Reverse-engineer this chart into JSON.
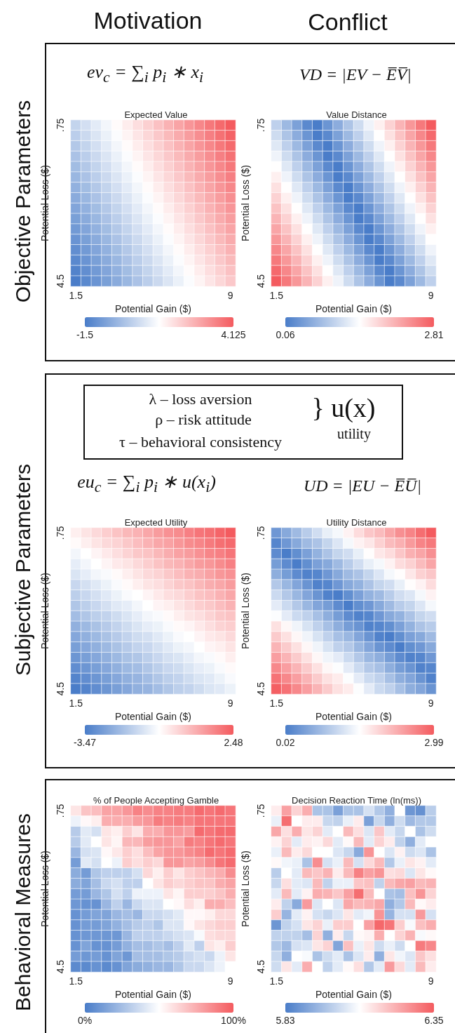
{
  "chart_data": [
    {
      "type": "heatmap",
      "title": "Expected Value",
      "xlabel": "Potential Gain ($)",
      "ylabel": "Potential Loss ($)",
      "annotations": [
        "Motivation",
        "Objective Parameters",
        "ev$_{c}$ = ∑$_{i}$ p$_{i}$ ∗ x$_{i}$"
      ],
      "categories": [
        "1.5",
        null,
        null,
        null,
        null,
        null,
        null,
        null,
        null,
        null,
        null,
        null,
        null,
        null,
        null,
        "9"
      ],
      "y_categories": [
        ".75",
        null,
        null,
        null,
        null,
        null,
        null,
        null,
        null,
        null,
        null,
        null,
        null,
        null,
        null,
        "4.5"
      ],
      "clim": [
        -1.5,
        4.125
      ],
      "cticks": [
        -1.5,
        4.125
      ],
      "cells": [
        [
          0.375,
          0.625,
          0.875,
          1.125,
          1.375,
          1.625,
          1.875,
          2.125,
          2.375,
          2.625,
          2.875,
          3.125,
          3.375,
          3.625,
          3.875,
          4.125
        ],
        [
          0.25,
          0.5,
          0.75,
          1,
          1.25,
          1.5,
          1.75,
          2,
          2.25,
          2.5,
          2.75,
          3,
          3.25,
          3.5,
          3.75,
          4
        ],
        [
          0.125,
          0.375,
          0.625,
          0.875,
          1.125,
          1.375,
          1.625,
          1.875,
          2.125,
          2.375,
          2.625,
          2.875,
          3.125,
          3.375,
          3.625,
          3.875
        ],
        [
          0,
          0.25,
          0.5,
          0.75,
          1,
          1.25,
          1.5,
          1.75,
          2,
          2.25,
          2.5,
          2.75,
          3,
          3.25,
          3.5,
          3.75
        ],
        [
          -0.125,
          0.125,
          0.375,
          0.625,
          0.875,
          1.125,
          1.375,
          1.625,
          1.875,
          2.125,
          2.375,
          2.625,
          2.875,
          3.125,
          3.375,
          3.625
        ],
        [
          -0.25,
          0,
          0.25,
          0.5,
          0.75,
          1,
          1.25,
          1.5,
          1.75,
          2,
          2.25,
          2.5,
          2.75,
          3,
          3.25,
          3.5
        ],
        [
          -0.375,
          -0.125,
          0.125,
          0.375,
          0.625,
          0.875,
          1.125,
          1.375,
          1.625,
          1.875,
          2.125,
          2.375,
          2.625,
          2.875,
          3.125,
          3.375
        ],
        [
          -0.5,
          -0.25,
          0,
          0.25,
          0.5,
          0.75,
          1,
          1.25,
          1.5,
          1.75,
          2,
          2.25,
          2.5,
          2.75,
          3,
          3.25
        ],
        [
          -0.625,
          -0.375,
          -0.125,
          0.125,
          0.375,
          0.625,
          0.875,
          1.125,
          1.375,
          1.625,
          1.875,
          2.125,
          2.375,
          2.625,
          2.875,
          3.125
        ],
        [
          -0.75,
          -0.5,
          -0.25,
          0,
          0.25,
          0.5,
          0.75,
          1,
          1.25,
          1.5,
          1.75,
          2,
          2.25,
          2.5,
          2.75,
          3
        ],
        [
          -0.875,
          -0.625,
          -0.375,
          -0.125,
          0.125,
          0.375,
          0.625,
          0.875,
          1.125,
          1.375,
          1.625,
          1.875,
          2.125,
          2.375,
          2.625,
          2.875
        ],
        [
          -1,
          -0.75,
          -0.5,
          -0.25,
          0,
          0.25,
          0.5,
          0.75,
          1,
          1.25,
          1.5,
          1.75,
          2,
          2.25,
          2.5,
          2.75
        ],
        [
          -1.125,
          -0.875,
          -0.625,
          -0.375,
          -0.125,
          0.125,
          0.375,
          0.625,
          0.875,
          1.125,
          1.375,
          1.625,
          1.875,
          2.125,
          2.375,
          2.625
        ],
        [
          -1.25,
          -1,
          -0.75,
          -0.5,
          -0.25,
          0,
          0.25,
          0.5,
          0.75,
          1,
          1.25,
          1.5,
          1.75,
          2,
          2.25,
          2.5
        ],
        [
          -1.375,
          -1.125,
          -0.875,
          -0.625,
          -0.375,
          -0.125,
          0.125,
          0.375,
          0.625,
          0.875,
          1.125,
          1.375,
          1.625,
          1.875,
          2.125,
          2.375
        ],
        [
          -1.5,
          -1.25,
          -1,
          -0.75,
          -0.5,
          -0.25,
          0,
          0.25,
          0.5,
          0.75,
          1,
          1.25,
          1.5,
          1.75,
          2,
          2.25
        ]
      ]
    },
    {
      "type": "heatmap",
      "title": "Value Distance",
      "xlabel": "Potential Gain ($)",
      "ylabel": "Potential Loss ($)",
      "annotations": [
        "Conflict",
        "VD = |EV − E̅V̅|"
      ],
      "categories": [
        "1.5",
        null,
        null,
        null,
        null,
        null,
        null,
        null,
        null,
        null,
        null,
        null,
        null,
        null,
        null,
        "9"
      ],
      "y_categories": [
        ".75",
        null,
        null,
        null,
        null,
        null,
        null,
        null,
        null,
        null,
        null,
        null,
        null,
        null,
        null,
        "4.5"
      ],
      "clim": [
        0.06,
        2.81
      ],
      "cticks": [
        0.06,
        2.81
      ],
      "cells": [
        [
          0.94,
          0.69,
          0.44,
          0.19,
          0.06,
          0.31,
          0.56,
          0.81,
          1.06,
          1.31,
          1.56,
          1.81,
          2.06,
          2.31,
          2.56,
          2.81
        ],
        [
          1.06,
          0.81,
          0.56,
          0.31,
          0.06,
          0.19,
          0.44,
          0.69,
          0.94,
          1.19,
          1.44,
          1.69,
          1.94,
          2.19,
          2.44,
          2.69
        ],
        [
          1.19,
          0.94,
          0.69,
          0.44,
          0.19,
          0.06,
          0.31,
          0.56,
          0.81,
          1.06,
          1.31,
          1.56,
          1.81,
          2.06,
          2.31,
          2.56
        ],
        [
          1.31,
          1.06,
          0.81,
          0.56,
          0.31,
          0.06,
          0.19,
          0.44,
          0.69,
          0.94,
          1.19,
          1.44,
          1.69,
          1.94,
          2.19,
          2.44
        ],
        [
          1.44,
          1.19,
          0.94,
          0.69,
          0.44,
          0.19,
          0.06,
          0.31,
          0.56,
          0.81,
          1.06,
          1.31,
          1.56,
          1.81,
          2.06,
          2.31
        ],
        [
          1.56,
          1.31,
          1.06,
          0.81,
          0.56,
          0.31,
          0.06,
          0.19,
          0.44,
          0.69,
          0.94,
          1.19,
          1.44,
          1.69,
          1.94,
          2.19
        ],
        [
          1.69,
          1.44,
          1.19,
          0.94,
          0.69,
          0.44,
          0.19,
          0.06,
          0.31,
          0.56,
          0.81,
          1.06,
          1.31,
          1.56,
          1.81,
          2.06
        ],
        [
          1.81,
          1.56,
          1.31,
          1.06,
          0.81,
          0.56,
          0.31,
          0.06,
          0.19,
          0.44,
          0.69,
          0.94,
          1.19,
          1.44,
          1.69,
          1.94
        ],
        [
          1.94,
          1.69,
          1.44,
          1.19,
          0.94,
          0.69,
          0.44,
          0.19,
          0.06,
          0.31,
          0.56,
          0.81,
          1.06,
          1.31,
          1.56,
          1.81
        ],
        [
          2.06,
          1.81,
          1.56,
          1.31,
          1.06,
          0.81,
          0.56,
          0.31,
          0.06,
          0.19,
          0.44,
          0.69,
          0.94,
          1.19,
          1.44,
          1.69
        ],
        [
          2.19,
          1.94,
          1.69,
          1.44,
          1.19,
          0.94,
          0.69,
          0.44,
          0.19,
          0.06,
          0.31,
          0.56,
          0.81,
          1.06,
          1.31,
          1.56
        ],
        [
          2.31,
          2.06,
          1.81,
          1.56,
          1.31,
          1.06,
          0.81,
          0.56,
          0.31,
          0.06,
          0.19,
          0.44,
          0.69,
          0.94,
          1.19,
          1.44
        ],
        [
          2.44,
          2.19,
          1.94,
          1.69,
          1.44,
          1.19,
          0.94,
          0.69,
          0.44,
          0.19,
          0.06,
          0.31,
          0.56,
          0.81,
          1.06,
          1.31
        ],
        [
          2.56,
          2.31,
          2.06,
          1.81,
          1.56,
          1.31,
          1.06,
          0.81,
          0.56,
          0.31,
          0.06,
          0.19,
          0.44,
          0.69,
          0.94,
          1.19
        ],
        [
          2.69,
          2.44,
          2.19,
          1.94,
          1.69,
          1.44,
          1.19,
          0.94,
          0.69,
          0.44,
          0.19,
          0.06,
          0.31,
          0.56,
          0.81,
          1.06
        ],
        [
          2.81,
          2.56,
          2.31,
          2.06,
          1.81,
          1.56,
          1.31,
          1.06,
          0.81,
          0.56,
          0.31,
          0.06,
          0.19,
          0.44,
          0.69,
          0.94
        ]
      ]
    },
    {
      "type": "heatmap",
      "title": "Expected Utility",
      "xlabel": "Potential Gain ($)",
      "ylabel": "Potential Loss ($)",
      "annotations": [
        "Subjective Parameters",
        "λ – loss aversion",
        "ρ – risk attitude",
        "τ – behavioral consistency",
        "} u(x)",
        "utility",
        "eu$_{c}$ = ∑$_{i}$ p$_{i}$ ∗ u(x$_{i}$)"
      ],
      "categories": [
        "1.5",
        null,
        null,
        null,
        null,
        null,
        null,
        null,
        null,
        null,
        null,
        null,
        null,
        null,
        null,
        "9"
      ],
      "y_categories": [
        ".75",
        null,
        null,
        null,
        null,
        null,
        null,
        null,
        null,
        null,
        null,
        null,
        null,
        null,
        null,
        "4.5"
      ],
      "clim": [
        -3.47,
        2.48
      ],
      "cticks": [
        -3.47,
        2.48
      ],
      "cells": [
        [
          -0.2,
          0,
          0.2,
          0.4,
          0.6,
          0.8,
          0.9,
          1.1,
          1.3,
          1.5,
          1.6,
          1.8,
          2,
          2.1,
          2.3,
          2.48
        ],
        [
          -0.4,
          -0.2,
          0,
          0.2,
          0.3,
          0.5,
          0.7,
          0.9,
          1.1,
          1.2,
          1.4,
          1.6,
          1.7,
          1.9,
          2.1,
          2.2
        ],
        [
          -0.7,
          -0.5,
          -0.3,
          -0.1,
          0.1,
          0.3,
          0.5,
          0.6,
          0.8,
          1,
          1.2,
          1.3,
          1.5,
          1.7,
          1.8,
          2
        ],
        [
          -0.9,
          -0.7,
          -0.5,
          -0.3,
          -0.1,
          0,
          0.2,
          0.4,
          0.6,
          0.8,
          0.9,
          1.1,
          1.3,
          1.4,
          1.6,
          1.8
        ],
        [
          -1.1,
          -0.9,
          -0.7,
          -0.6,
          -0.4,
          -0.2,
          0,
          0.2,
          0.3,
          0.5,
          0.7,
          0.9,
          1,
          1.2,
          1.4,
          1.5
        ],
        [
          -1.4,
          -1.2,
          -1,
          -0.8,
          -0.6,
          -0.4,
          -0.2,
          0,
          0.1,
          0.3,
          0.5,
          0.6,
          0.8,
          1,
          1.1,
          1.3
        ],
        [
          -1.6,
          -1.4,
          -1.2,
          -1,
          -0.8,
          -0.6,
          -0.5,
          -0.3,
          -0.1,
          0.1,
          0.2,
          0.4,
          0.6,
          0.7,
          0.9,
          1.1
        ],
        [
          -1.8,
          -1.6,
          -1.4,
          -1.2,
          -1,
          -0.9,
          -0.7,
          -0.5,
          -0.3,
          -0.2,
          0,
          0.2,
          0.4,
          0.5,
          0.7,
          0.9
        ],
        [
          -2,
          -1.8,
          -1.6,
          -1.5,
          -1.3,
          -1.1,
          -0.9,
          -0.7,
          -0.6,
          -0.4,
          -0.2,
          0,
          0.1,
          0.3,
          0.5,
          0.6
        ],
        [
          -2.3,
          -2.1,
          -1.9,
          -1.7,
          -1.5,
          -1.3,
          -1.1,
          -0.9,
          -0.8,
          -0.6,
          -0.4,
          -0.3,
          -0.1,
          0.1,
          0.3,
          0.4
        ],
        [
          -2.5,
          -2.3,
          -2.1,
          -1.9,
          -1.7,
          -1.5,
          -1.3,
          -1.2,
          -1,
          -0.8,
          -0.6,
          -0.5,
          -0.3,
          -0.1,
          0,
          0.2
        ],
        [
          -2.7,
          -2.5,
          -2.3,
          -2.1,
          -1.9,
          -1.7,
          -1.5,
          -1.4,
          -1.2,
          -1,
          -0.8,
          -0.7,
          -0.5,
          -0.3,
          -0.2,
          0
        ],
        [
          -2.9,
          -2.7,
          -2.5,
          -2.3,
          -2.1,
          -1.9,
          -1.8,
          -1.6,
          -1.4,
          -1.2,
          -1.1,
          -0.9,
          -0.7,
          -0.6,
          -0.4,
          -0.2
        ],
        [
          -3.1,
          -2.9,
          -2.7,
          -2.5,
          -2.3,
          -2.1,
          -2,
          -1.8,
          -1.6,
          -1.4,
          -1.3,
          -1.1,
          -0.9,
          -0.8,
          -0.6,
          -0.4
        ],
        [
          -3.3,
          -3.1,
          -2.9,
          -2.7,
          -2.5,
          -2.3,
          -2.2,
          -2,
          -1.8,
          -1.6,
          -1.5,
          -1.3,
          -1.1,
          -1,
          -0.8,
          -0.6
        ],
        [
          -3.47,
          -3.3,
          -3.1,
          -2.9,
          -2.7,
          -2.5,
          -2.3,
          -2.2,
          -2,
          -1.8,
          -1.6,
          -1.5,
          -1.3,
          -1.1,
          -1,
          -0.8
        ]
      ]
    },
    {
      "type": "heatmap",
      "title": "Utility Distance",
      "xlabel": "Potential Gain ($)",
      "ylabel": "Potential Loss ($)",
      "annotations": [
        "UD = |EU − E̅U̅|"
      ],
      "categories": [
        "1.5",
        null,
        null,
        null,
        null,
        null,
        null,
        null,
        null,
        null,
        null,
        null,
        null,
        null,
        null,
        "9"
      ],
      "y_categories": [
        ".75",
        null,
        null,
        null,
        null,
        null,
        null,
        null,
        null,
        null,
        null,
        null,
        null,
        null,
        null,
        "4.5"
      ],
      "clim": [
        0.02,
        2.99
      ],
      "cticks": [
        0.02,
        2.99
      ],
      "cells": [
        [
          0.32,
          0.52,
          0.72,
          0.92,
          1.12,
          1.32,
          1.42,
          1.62,
          1.82,
          2.02,
          2.12,
          2.32,
          2.52,
          2.62,
          2.82,
          2.99
        ],
        [
          0.12,
          0.32,
          0.52,
          0.72,
          0.82,
          1.02,
          1.22,
          1.42,
          1.62,
          1.72,
          1.92,
          2.12,
          2.22,
          2.42,
          2.62,
          2.72
        ],
        [
          0.18,
          0.02,
          0.22,
          0.42,
          0.62,
          0.82,
          1.02,
          1.12,
          1.32,
          1.52,
          1.72,
          1.82,
          2.02,
          2.22,
          2.32,
          2.52
        ],
        [
          0.38,
          0.18,
          0.02,
          0.22,
          0.42,
          0.52,
          0.72,
          0.92,
          1.12,
          1.32,
          1.42,
          1.62,
          1.82,
          1.92,
          2.12,
          2.32
        ],
        [
          0.58,
          0.38,
          0.18,
          0.08,
          0.12,
          0.32,
          0.52,
          0.72,
          0.82,
          1.02,
          1.22,
          1.42,
          1.52,
          1.72,
          1.92,
          2.02
        ],
        [
          0.88,
          0.68,
          0.48,
          0.28,
          0.08,
          0.12,
          0.32,
          0.52,
          0.62,
          0.82,
          1.02,
          1.12,
          1.32,
          1.52,
          1.62,
          1.82
        ],
        [
          1.08,
          0.88,
          0.68,
          0.48,
          0.28,
          0.08,
          0.02,
          0.22,
          0.42,
          0.62,
          0.72,
          0.92,
          1.12,
          1.22,
          1.42,
          1.62
        ],
        [
          1.28,
          1.08,
          0.88,
          0.68,
          0.48,
          0.38,
          0.18,
          0.02,
          0.22,
          0.32,
          0.52,
          0.72,
          0.92,
          1.02,
          1.22,
          1.42
        ],
        [
          1.48,
          1.28,
          1.08,
          0.98,
          0.78,
          0.58,
          0.38,
          0.18,
          0.08,
          0.12,
          0.32,
          0.52,
          0.62,
          0.82,
          1.02,
          1.12
        ],
        [
          1.78,
          1.58,
          1.38,
          1.18,
          0.98,
          0.78,
          0.58,
          0.38,
          0.28,
          0.08,
          0.12,
          0.22,
          0.42,
          0.62,
          0.82,
          0.92
        ],
        [
          1.98,
          1.78,
          1.58,
          1.38,
          1.18,
          0.98,
          0.78,
          0.68,
          0.48,
          0.28,
          0.08,
          0.02,
          0.22,
          0.42,
          0.52,
          0.72
        ],
        [
          2.18,
          1.98,
          1.78,
          1.58,
          1.38,
          1.18,
          0.98,
          0.88,
          0.68,
          0.48,
          0.28,
          0.18,
          0.02,
          0.22,
          0.32,
          0.52
        ],
        [
          2.38,
          2.18,
          1.98,
          1.78,
          1.58,
          1.38,
          1.28,
          1.08,
          0.88,
          0.68,
          0.58,
          0.38,
          0.18,
          0.08,
          0.12,
          0.32
        ],
        [
          2.58,
          2.38,
          2.18,
          1.98,
          1.78,
          1.58,
          1.48,
          1.28,
          1.08,
          0.88,
          0.78,
          0.58,
          0.38,
          0.28,
          0.08,
          0.12
        ],
        [
          2.78,
          2.58,
          2.38,
          2.18,
          1.98,
          1.78,
          1.68,
          1.48,
          1.28,
          1.08,
          0.98,
          0.78,
          0.58,
          0.48,
          0.28,
          0.08
        ],
        [
          2.95,
          2.78,
          2.58,
          2.38,
          2.18,
          1.98,
          1.78,
          1.68,
          1.48,
          1.28,
          1.08,
          0.98,
          0.78,
          0.58,
          0.48,
          0.28
        ]
      ]
    },
    {
      "type": "heatmap",
      "title": "% of People Accepting Gamble",
      "xlabel": "Potential Gain ($)",
      "ylabel": "Potential Loss ($)",
      "annotations": [
        "Behavioral Measures"
      ],
      "categories": [
        "1.5",
        null,
        null,
        null,
        null,
        null,
        null,
        null,
        null,
        null,
        null,
        null,
        null,
        null,
        null,
        "9"
      ],
      "y_categories": [
        ".75",
        null,
        null,
        null,
        null,
        null,
        null,
        null,
        null,
        null,
        null,
        null,
        null,
        null,
        null,
        "4.5"
      ],
      "clim": [
        0,
        100
      ],
      "cticks": [
        {
          "value": 0,
          "label": "0%"
        },
        {
          "value": 100,
          "label": "100%"
        }
      ],
      "cells": [
        [
          58,
          68,
          70,
          78,
          78,
          82,
          88,
          85,
          88,
          88,
          90,
          90,
          95,
          92,
          95,
          92
        ],
        [
          45,
          52,
          55,
          75,
          75,
          75,
          80,
          82,
          90,
          88,
          90,
          88,
          92,
          92,
          92,
          92
        ],
        [
          30,
          42,
          38,
          58,
          55,
          65,
          58,
          75,
          75,
          82,
          82,
          80,
          95,
          92,
          95,
          95
        ],
        [
          30,
          42,
          50,
          58,
          53,
          72,
          72,
          80,
          82,
          82,
          78,
          90,
          88,
          92,
          95,
          92
        ],
        [
          22,
          38,
          40,
          52,
          57,
          65,
          60,
          70,
          78,
          82,
          82,
          85,
          88,
          95,
          92,
          95
        ],
        [
          12,
          42,
          38,
          50,
          45,
          65,
          60,
          65,
          62,
          82,
          82,
          78,
          80,
          85,
          92,
          95
        ],
        [
          18,
          12,
          28,
          32,
          32,
          32,
          38,
          62,
          55,
          65,
          58,
          65,
          68,
          72,
          75,
          85
        ],
        [
          18,
          15,
          25,
          35,
          38,
          32,
          32,
          50,
          58,
          65,
          62,
          65,
          68,
          68,
          75,
          78
        ],
        [
          12,
          12,
          22,
          28,
          38,
          32,
          45,
          45,
          45,
          58,
          53,
          65,
          65,
          65,
          68,
          75
        ],
        [
          10,
          8,
          8,
          22,
          32,
          22,
          35,
          40,
          40,
          50,
          52,
          60,
          55,
          75,
          75,
          70
        ],
        [
          8,
          12,
          15,
          15,
          22,
          25,
          22,
          35,
          35,
          38,
          42,
          52,
          52,
          55,
          62,
          62
        ],
        [
          8,
          12,
          12,
          15,
          20,
          25,
          30,
          32,
          28,
          40,
          40,
          52,
          58,
          62,
          65,
          65
        ],
        [
          8,
          10,
          10,
          10,
          10,
          22,
          32,
          32,
          32,
          35,
          38,
          40,
          48,
          60,
          62,
          62
        ],
        [
          8,
          15,
          8,
          8,
          12,
          20,
          25,
          25,
          28,
          25,
          32,
          42,
          32,
          58,
          55,
          65
        ],
        [
          12,
          10,
          12,
          8,
          15,
          10,
          25,
          25,
          25,
          28,
          30,
          35,
          38,
          35,
          45,
          58
        ],
        [
          5,
          5,
          8,
          5,
          8,
          15,
          18,
          20,
          22,
          22,
          28,
          35,
          35,
          40,
          45,
          50
        ]
      ]
    },
    {
      "type": "heatmap",
      "title": "Decision Reaction Time (ln(ms))",
      "xlabel": "Potential Gain ($)",
      "ylabel": "Potential Loss ($)",
      "categories": [
        "1.5",
        null,
        null,
        null,
        null,
        null,
        null,
        null,
        null,
        null,
        null,
        null,
        null,
        null,
        null,
        "9"
      ],
      "y_categories": [
        ".75",
        null,
        null,
        null,
        null,
        null,
        null,
        null,
        null,
        null,
        null,
        null,
        null,
        null,
        null,
        "4.5"
      ],
      "clim": [
        5.83,
        6.35
      ],
      "cticks": [
        5.83,
        6.35
      ],
      "cells": [
        [
          6.12,
          6.24,
          6.16,
          6.22,
          5.97,
          5.97,
          5.9,
          5.97,
          5.97,
          6.03,
          5.98,
          5.93,
          6.09,
          5.88,
          5.87,
          5.99
        ],
        [
          6.06,
          6.32,
          6.09,
          6.12,
          6.12,
          6.01,
          6,
          6.06,
          6.12,
          5.9,
          6.01,
          5.93,
          6.02,
          5.95,
          5.98,
          5.98
        ],
        [
          6.23,
          6.14,
          6.22,
          6.13,
          6.16,
          6.05,
          6.09,
          6.2,
          6.14,
          6.04,
          6.18,
          6.05,
          6.01,
          6.09,
          5.97,
          6.02
        ],
        [
          6.11,
          6.16,
          6.05,
          6.12,
          6.11,
          6.15,
          6.05,
          6.1,
          6.2,
          6.05,
          6.16,
          6.12,
          6,
          5.93,
          6.05,
          6.09
        ],
        [
          6.06,
          6.2,
          6.12,
          6.15,
          6.09,
          6.09,
          6.04,
          6.01,
          5.92,
          6.26,
          6.09,
          6.04,
          6.11,
          6.02,
          6.04,
          5.97
        ],
        [
          6.1,
          6.07,
          6.06,
          5.97,
          6.27,
          6.03,
          6.06,
          6.2,
          6.03,
          6.15,
          6.2,
          5.98,
          6.06,
          6.13,
          6.11,
          6.05
        ],
        [
          5.99,
          6.09,
          6.05,
          6.2,
          6.18,
          6.21,
          6.12,
          6.2,
          6.29,
          6.24,
          6.26,
          6.14,
          6.15,
          6.04,
          6.13,
          6.1
        ],
        [
          6.01,
          6.14,
          6.05,
          6.04,
          6.2,
          6,
          6.06,
          6.06,
          6.18,
          6.19,
          6,
          6.2,
          6.23,
          6.24,
          6.2,
          6.21
        ],
        [
          6.05,
          6.2,
          6.05,
          6.11,
          6.22,
          6.21,
          6.18,
          6.24,
          6.32,
          6.2,
          6.09,
          5.97,
          5.96,
          6.19,
          6.26,
          6.16
        ],
        [
          6.12,
          6,
          5.92,
          6.25,
          6.04,
          6.09,
          6.04,
          6.23,
          6.2,
          6.21,
          6.23,
          5.93,
          5.98,
          6.2,
          6.1,
          6.12
        ],
        [
          6.17,
          5.94,
          6.05,
          6.11,
          6.03,
          6.01,
          6.04,
          6.13,
          6.05,
          6.07,
          6.26,
          5.94,
          6.03,
          6.03,
          6.25,
          6.03
        ],
        [
          5.88,
          6,
          6.03,
          6.13,
          6.16,
          6.06,
          6.17,
          6.17,
          6.09,
          6.24,
          6.33,
          6.31,
          6.17,
          6.08,
          6.19,
          6.22
        ],
        [
          6,
          6,
          6,
          5.96,
          6.16,
          5.93,
          6.12,
          6.01,
          6.1,
          6.11,
          6.22,
          6.09,
          6.16,
          6.21,
          6.08,
          6.1
        ],
        [
          5.98,
          5.95,
          6.03,
          6.04,
          6.13,
          6.16,
          5.91,
          6.19,
          6.06,
          6.13,
          6.02,
          6.06,
          6.02,
          6.09,
          6.3,
          6.28
        ],
        [
          6.01,
          5.93,
          6.09,
          6.08,
          5.97,
          6.02,
          6.05,
          5.97,
          6.04,
          6.12,
          5.93,
          6.13,
          6.07,
          6.04,
          6.18,
          6.14
        ],
        [
          6.02,
          6.13,
          6.05,
          6.22,
          6.09,
          6,
          6.05,
          6.1,
          6.14,
          5.98,
          6.05,
          6.25,
          6.15,
          6.05,
          6.2,
          6.12
        ]
      ]
    }
  ]
}
